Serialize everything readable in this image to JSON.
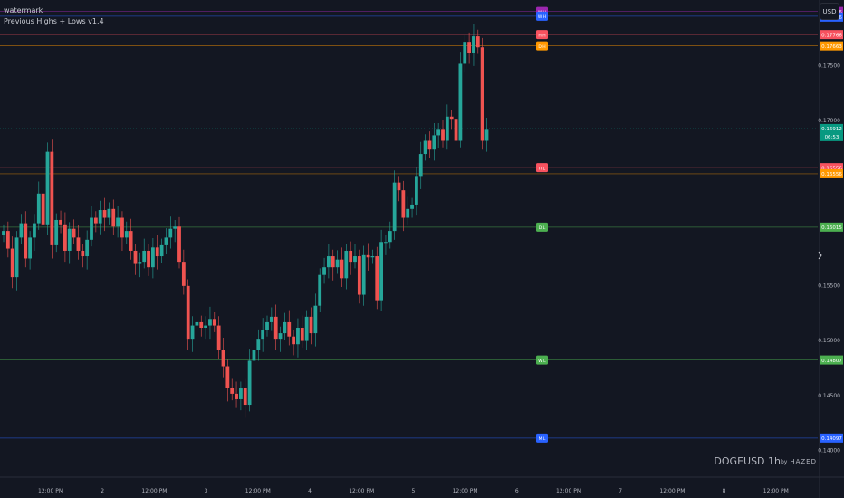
{
  "legend": {
    "line1": "watermark",
    "line2": "Previous Highs + Lows v1.4"
  },
  "currency_label": "USD",
  "watermark": {
    "symbol": "DOGEUSD 1h",
    "by_prefix": "by",
    "by_name": "HAZED"
  },
  "colors": {
    "background": "#131722",
    "up": "#26a69a",
    "down": "#ef5350",
    "grid": "#1e222d",
    "axis_text": "#b2b5be"
  },
  "chart_data": {
    "type": "candlestick",
    "title": "",
    "symbol": "DOGEUSD",
    "interval": "1h",
    "ylim": [
      0.1375,
      0.1808
    ],
    "y_ticks": [
      "0.17500",
      "0.17000",
      "0.15500",
      "0.15000",
      "0.14500",
      "0.14000"
    ],
    "x_ticks": [
      "12:00 PM",
      "2",
      "12:00 PM",
      "3",
      "12:00 PM",
      "4",
      "12:00 PM",
      "5",
      "12:00 PM",
      "6",
      "12:00 PM",
      "7",
      "12:00 PM",
      "8",
      "12:00 PM"
    ],
    "closes": [
      0.1598,
      0.1582,
      0.1556,
      0.1592,
      0.1605,
      0.1573,
      0.1592,
      0.1605,
      0.1632,
      0.1604,
      0.167,
      0.1585,
      0.1608,
      0.1604,
      0.158,
      0.16,
      0.1592,
      0.158,
      0.1575,
      0.159,
      0.161,
      0.1605,
      0.1617,
      0.161,
      0.1618,
      0.1602,
      0.161,
      0.1592,
      0.1598,
      0.158,
      0.1568,
      0.157,
      0.158,
      0.1565,
      0.1583,
      0.1575,
      0.1585,
      0.1592,
      0.16,
      0.1602,
      0.157,
      0.1548,
      0.15,
      0.1512,
      0.1515,
      0.151,
      0.1512,
      0.1518,
      0.1512,
      0.149,
      0.1475,
      0.1455,
      0.145,
      0.1445,
      0.1455,
      0.144,
      0.148,
      0.149,
      0.15,
      0.1508,
      0.1515,
      0.152,
      0.15,
      0.1505,
      0.1515,
      0.1502,
      0.1495,
      0.151,
      0.1498,
      0.152,
      0.1505,
      0.153,
      0.1558,
      0.1565,
      0.1575,
      0.1565,
      0.1572,
      0.1555,
      0.158,
      0.157,
      0.1575,
      0.154,
      0.1576,
      0.1574,
      0.1575,
      0.1535,
      0.1588,
      0.1588,
      0.1598,
      0.1642,
      0.1635,
      0.161,
      0.1618,
      0.1622,
      0.1648,
      0.1668,
      0.168,
      0.1672,
      0.1685,
      0.169,
      0.168,
      0.1702,
      0.17,
      0.168,
      0.175,
      0.177,
      0.176,
      0.1775,
      0.1765,
      0.168,
      0.169
    ],
    "reference_levels": [
      {
        "tag": "M H",
        "price": "0.17976",
        "value": 0.17976,
        "kind": "monthly high"
      },
      {
        "tag": "W H",
        "price": "0.17976",
        "value": 0.17933,
        "kind": "weekly high"
      },
      {
        "tag": "H H",
        "price": "0.17766",
        "value": 0.17766,
        "kind": "high"
      },
      {
        "tag": "D H",
        "price": "0.17663",
        "value": 0.17663,
        "kind": "daily high"
      },
      {
        "tag": "",
        "price": "0.16912",
        "value": 0.16912,
        "kind": "last price",
        "countdown": "06:53"
      },
      {
        "tag": "H L",
        "price": "0.16556",
        "value": 0.16556,
        "kind": "low"
      },
      {
        "tag": "",
        "price": "0.16556",
        "value": 0.165,
        "kind": "low"
      },
      {
        "tag": "D L",
        "price": "0.16015",
        "value": 0.16015,
        "kind": "daily low"
      },
      {
        "tag": "W L",
        "price": "0.14807",
        "value": 0.14807,
        "kind": "weekly low"
      },
      {
        "tag": "M L",
        "price": "0.14097",
        "value": 0.14097,
        "kind": "monthly low"
      }
    ]
  }
}
